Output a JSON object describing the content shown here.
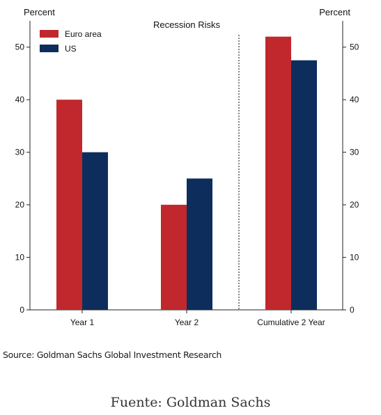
{
  "chart_data": {
    "type": "bar",
    "title": "Recession Risks",
    "ylabel_left": "Percent",
    "ylabel_right": "Percent",
    "categories": [
      "Year 1",
      "Year 2",
      "Cumulative 2 Year"
    ],
    "series": [
      {
        "name": "Euro area",
        "color": "#c0282d",
        "values": [
          40,
          20,
          52
        ]
      },
      {
        "name": "US",
        "color": "#0d2e5c",
        "values": [
          30,
          25,
          47.5
        ]
      }
    ],
    "ylim": [
      0,
      55
    ],
    "yticks": [
      0,
      10,
      20,
      30,
      40,
      50
    ],
    "grid": false,
    "legend": "top-left",
    "divider_before_category": 2
  },
  "source": "Source: Goldman Sachs Global Investment Research",
  "caption": "Fuente: Goldman Sachs"
}
